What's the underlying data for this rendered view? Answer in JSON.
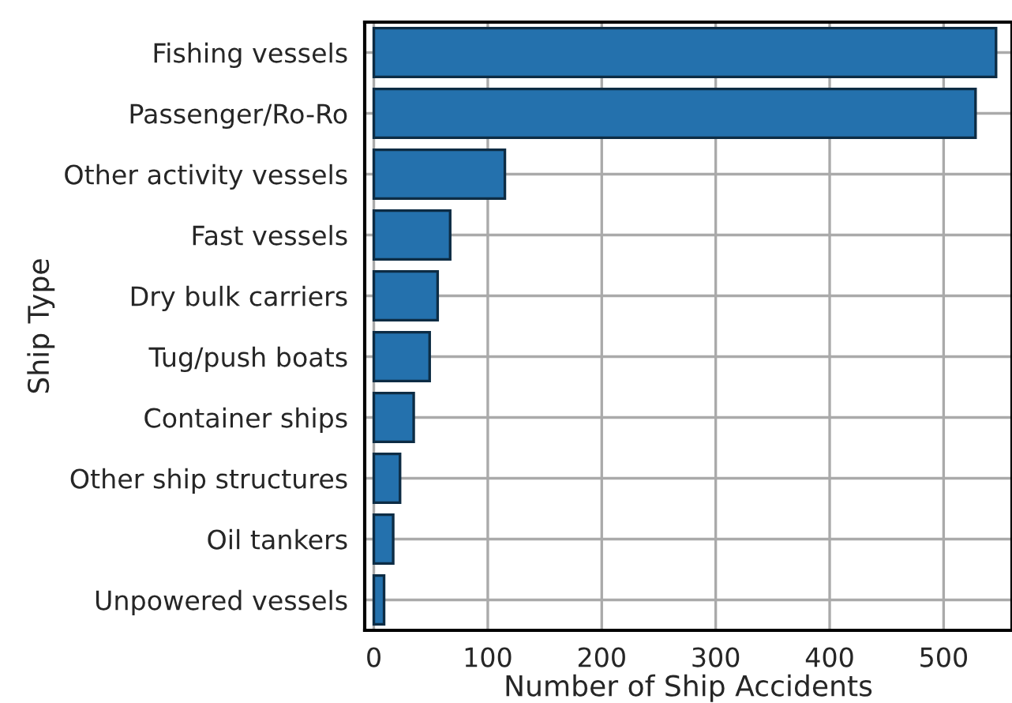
{
  "chart_data": {
    "type": "bar",
    "orientation": "horizontal",
    "xlabel": "Number of Ship Accidents",
    "ylabel": "Ship Type",
    "categories": [
      "Fishing vessels",
      "Passenger/Ro-Ro",
      "Other activity vessels",
      "Fast vessels",
      "Dry bulk carriers",
      "Tug/push boats",
      "Container ships",
      "Other ship structures",
      "Oil tankers",
      "Unpowered vessels"
    ],
    "values": [
      546,
      528,
      115,
      67,
      56,
      49,
      35,
      23,
      17,
      9
    ],
    "color": "#2471ad",
    "xlim": [
      -8,
      560
    ],
    "xticks": [
      0,
      100,
      200,
      300,
      400,
      500
    ],
    "grid": true
  }
}
